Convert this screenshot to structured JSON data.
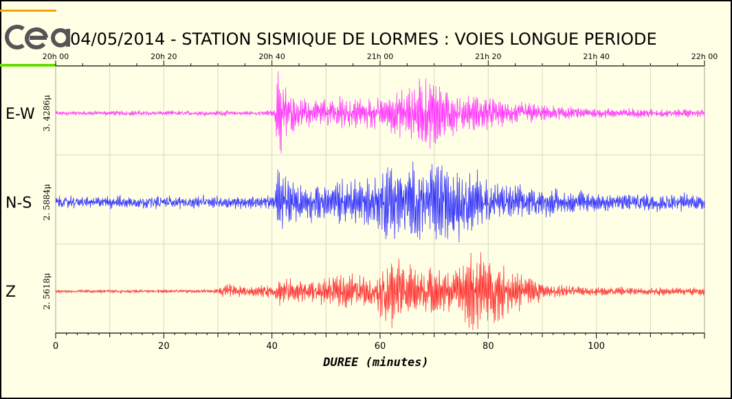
{
  "chart_data": {
    "type": "line",
    "title": "04/05/2014  -  STATION SISMIQUE DE LORMES : VOIES LONGUE PERIODE",
    "logo_text": "cea",
    "top_axis_ticks": [
      "20h 00",
      "20h 20",
      "20h 40",
      "21h 00",
      "21h 20",
      "21h 40",
      "22h 00"
    ],
    "xlabel": "DUREE (minutes)",
    "xlim": [
      0,
      120
    ],
    "x_ticks": [
      0,
      20,
      40,
      60,
      80,
      100
    ],
    "grid": true,
    "series": [
      {
        "name": "E-W",
        "scale_label": "3. 4286μ",
        "color": "#ff33ff",
        "noise": 0.045,
        "envelope": [
          [
            0,
            0.04
          ],
          [
            40.5,
            0.05
          ],
          [
            41,
            0.9
          ],
          [
            42,
            1.0
          ],
          [
            43,
            0.45
          ],
          [
            45,
            0.35
          ],
          [
            50,
            0.3
          ],
          [
            53,
            0.4
          ],
          [
            57,
            0.35
          ],
          [
            60,
            0.35
          ],
          [
            65,
            0.55
          ],
          [
            67,
            0.75
          ],
          [
            70,
            0.8
          ],
          [
            72,
            0.55
          ],
          [
            75,
            0.45
          ],
          [
            80,
            0.35
          ],
          [
            85,
            0.25
          ],
          [
            90,
            0.18
          ],
          [
            100,
            0.1
          ],
          [
            120,
            0.08
          ]
        ]
      },
      {
        "name": "N-S",
        "scale_label": "2. 5884μ",
        "color": "#3333ff",
        "noise": 0.12,
        "envelope": [
          [
            0,
            0.1
          ],
          [
            40.5,
            0.12
          ],
          [
            41,
            0.8
          ],
          [
            43,
            0.55
          ],
          [
            45,
            0.4
          ],
          [
            50,
            0.4
          ],
          [
            55,
            0.5
          ],
          [
            60,
            0.6
          ],
          [
            62,
            0.95
          ],
          [
            65,
            0.8
          ],
          [
            68,
            0.9
          ],
          [
            71,
            0.85
          ],
          [
            74,
            0.95
          ],
          [
            76,
            0.6
          ],
          [
            78,
            0.7
          ],
          [
            80,
            0.45
          ],
          [
            85,
            0.35
          ],
          [
            90,
            0.3
          ],
          [
            100,
            0.2
          ],
          [
            120,
            0.15
          ]
        ]
      },
      {
        "name": "Z",
        "scale_label": "2. 5618μ",
        "color": "#ff3333",
        "noise": 0.03,
        "envelope": [
          [
            0,
            0.03
          ],
          [
            30,
            0.04
          ],
          [
            31.5,
            0.2
          ],
          [
            33,
            0.12
          ],
          [
            40,
            0.13
          ],
          [
            41.5,
            0.35
          ],
          [
            44,
            0.25
          ],
          [
            50,
            0.3
          ],
          [
            55,
            0.4
          ],
          [
            59,
            0.3
          ],
          [
            61.5,
            1.0
          ],
          [
            63,
            0.75
          ],
          [
            65,
            0.6
          ],
          [
            70,
            0.5
          ],
          [
            74,
            0.45
          ],
          [
            78,
            1.0
          ],
          [
            80,
            0.7
          ],
          [
            85,
            0.45
          ],
          [
            89,
            0.35
          ],
          [
            90,
            0.15
          ],
          [
            100,
            0.1
          ],
          [
            120,
            0.08
          ]
        ]
      }
    ]
  }
}
